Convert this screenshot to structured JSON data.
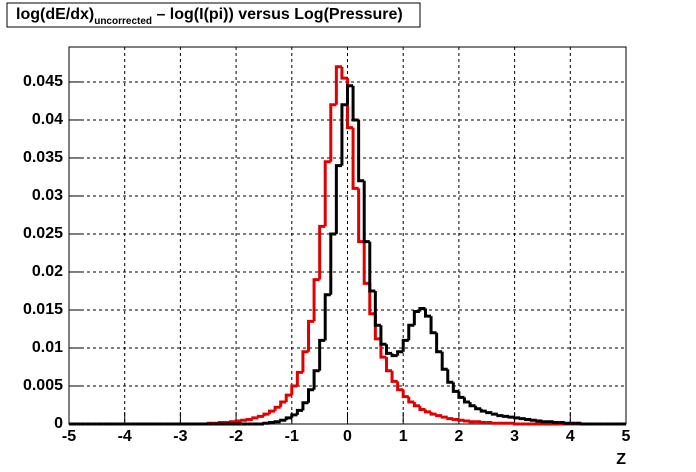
{
  "chart_data": {
    "type": "histogram",
    "title": [
      "log(dE/dx)",
      "uncorrected",
      " – log(I(pi)) versus Log(Pressure)"
    ],
    "x_label": "Z",
    "bins": [
      -5,
      -4.9,
      -4.8,
      -4.7,
      -4.6,
      -4.5,
      -4.4,
      -4.3,
      -4.2,
      -4.1,
      -4,
      -3.9,
      -3.8,
      -3.7,
      -3.6,
      -3.5,
      -3.4,
      -3.3,
      -3.2,
      -3.1,
      -3,
      -2.9,
      -2.8,
      -2.7,
      -2.6,
      -2.5,
      -2.4,
      -2.3,
      -2.2,
      -2.1,
      -2,
      -1.9,
      -1.8,
      -1.7,
      -1.6,
      -1.5,
      -1.4,
      -1.3,
      -1.2,
      -1.1,
      -1,
      -0.9,
      -0.8,
      -0.7,
      -0.6,
      -0.5,
      -0.4,
      -0.3,
      -0.2,
      -0.1,
      0,
      0.1,
      0.2,
      0.3,
      0.4,
      0.5,
      0.6,
      0.7,
      0.8,
      0.9,
      1,
      1.1,
      1.2,
      1.3,
      1.4,
      1.5,
      1.6,
      1.7,
      1.8,
      1.9,
      2,
      2.1,
      2.2,
      2.3,
      2.4,
      2.5,
      2.6,
      2.7,
      2.8,
      2.9,
      3,
      3.1,
      3.2,
      3.3,
      3.4,
      3.5,
      3.6,
      3.7,
      3.8,
      3.9,
      4,
      4.1,
      4.2,
      4.3,
      4.4,
      4.5,
      4.6,
      4.7,
      4.8,
      4.9,
      5
    ],
    "series": [
      {
        "color": "#e00000",
        "values": [
          0,
          0,
          0,
          0,
          0,
          0,
          0,
          0,
          0,
          0,
          0,
          0,
          0,
          0,
          0,
          0,
          0,
          0,
          0,
          0,
          0,
          0,
          0,
          0,
          0,
          0.0001,
          0.0001,
          0.0002,
          0.0002,
          0.0003,
          0.0004,
          0.0005,
          0.0006,
          0.0008,
          0.001,
          0.0013,
          0.0017,
          0.0022,
          0.0029,
          0.0038,
          0.005,
          0.0068,
          0.0095,
          0.0135,
          0.019,
          0.026,
          0.0345,
          0.042,
          0.047,
          0.0455,
          0.039,
          0.031,
          0.024,
          0.0185,
          0.0145,
          0.0112,
          0.0088,
          0.007,
          0.0056,
          0.0045,
          0.0036,
          0.0029,
          0.0024,
          0.0019,
          0.0016,
          0.0013,
          0.0011,
          0.0009,
          0.0007,
          0.0006,
          0.0005,
          0.0004,
          0.0003,
          0.0003,
          0.0002,
          0.0002,
          0.0001,
          0.0001,
          0.0001,
          0.0001,
          0,
          0,
          0,
          0,
          0,
          0,
          0,
          0,
          0,
          0,
          0,
          0,
          0,
          0,
          0,
          0,
          0,
          0,
          0,
          0
        ]
      },
      {
        "color": "#000000",
        "values": [
          0,
          0,
          0,
          0,
          0,
          0,
          0,
          0,
          0,
          0,
          0,
          0,
          0,
          0,
          0,
          0,
          0,
          0,
          0,
          0,
          0,
          0,
          0,
          0,
          0,
          0,
          0,
          0,
          0,
          0,
          0,
          0,
          0,
          0,
          0,
          0.0001,
          0.0002,
          0.0003,
          0.0005,
          0.0008,
          0.0012,
          0.0018,
          0.0028,
          0.0045,
          0.007,
          0.011,
          0.017,
          0.025,
          0.034,
          0.042,
          0.0445,
          0.04,
          0.032,
          0.024,
          0.0175,
          0.013,
          0.0105,
          0.0093,
          0.009,
          0.0095,
          0.011,
          0.013,
          0.0148,
          0.0152,
          0.0142,
          0.012,
          0.0095,
          0.0072,
          0.0055,
          0.0043,
          0.0035,
          0.0029,
          0.0024,
          0.002,
          0.0017,
          0.0015,
          0.0013,
          0.0011,
          0.001,
          0.0009,
          0.0008,
          0.0007,
          0.0006,
          0.0005,
          0.0004,
          0.0003,
          0.0003,
          0.0002,
          0.0002,
          0.0001,
          0.0001,
          0.0001,
          0,
          0,
          0,
          0,
          0,
          0,
          0,
          0
        ]
      }
    ],
    "xlim": [
      -5,
      5
    ],
    "ylim": [
      0,
      0.0496
    ],
    "xticks": [
      -5,
      -4,
      -3,
      -2,
      -1,
      0,
      1,
      2,
      3,
      4,
      5
    ],
    "yticks": [
      0,
      0.005,
      0.01,
      0.015,
      0.02,
      0.025,
      0.03,
      0.035,
      0.04,
      0.045
    ],
    "grid": true
  }
}
